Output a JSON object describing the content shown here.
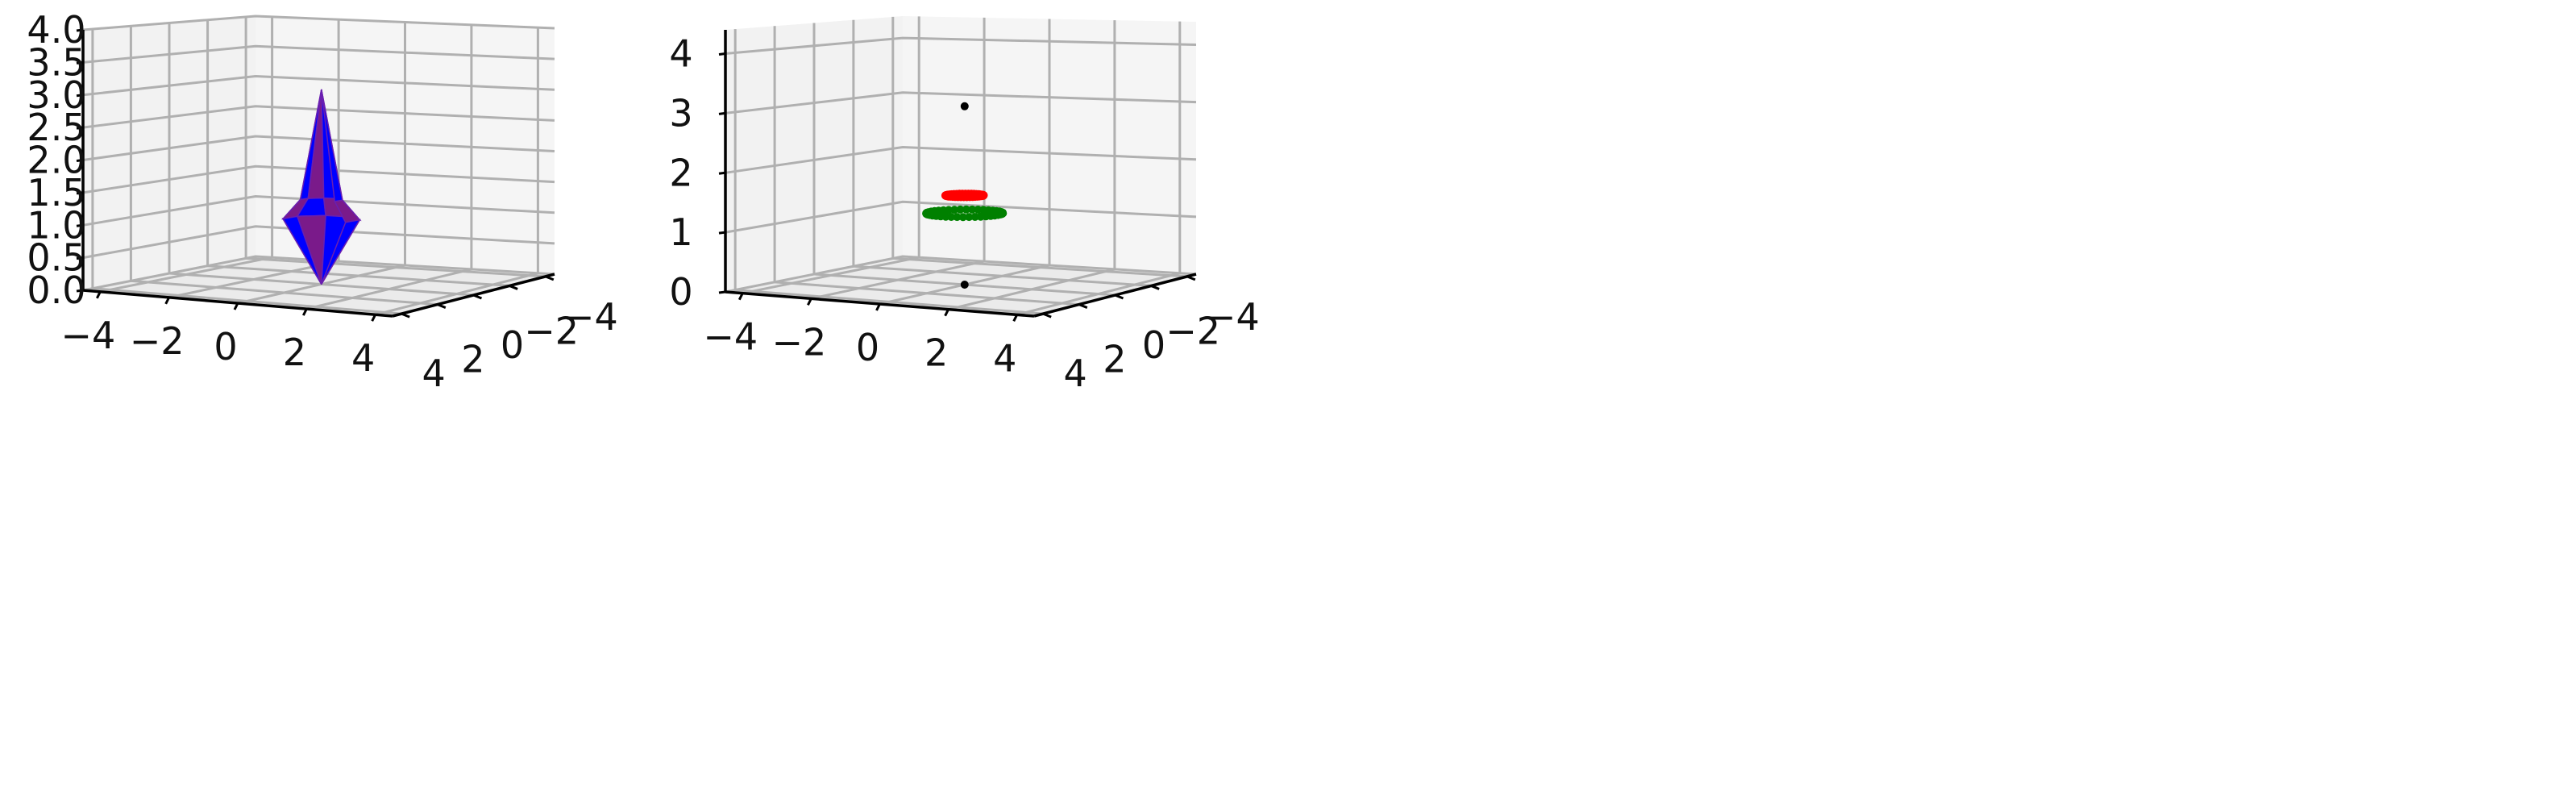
{
  "chart_data": [
    {
      "type": "surface3d",
      "title": "",
      "zticks": [
        "0.0",
        "0.5",
        "1.0",
        "1.5",
        "2.0",
        "2.5",
        "3.0",
        "3.5",
        "4.0"
      ],
      "xticks": [
        "−4",
        "−2",
        "0",
        "2",
        "4"
      ],
      "yticks": [
        "4",
        "2",
        "0",
        "−2",
        "−4"
      ],
      "xlim": [
        -4,
        4
      ],
      "ylim": [
        -4,
        4
      ],
      "zlim": [
        0,
        4
      ],
      "grid": true,
      "shape": {
        "top_z": 3.0,
        "equator_z": 1.0,
        "bottom_z": 0.0,
        "radius": 1.0,
        "colors": [
          "#0000ff",
          "#7a1a8a"
        ]
      }
    },
    {
      "type": "scatter3d",
      "title": "",
      "zticks": [
        "0",
        "1",
        "2",
        "3",
        "4"
      ],
      "xticks": [
        "−4",
        "−2",
        "0",
        "2",
        "4"
      ],
      "yticks": [
        "4",
        "2",
        "0",
        "−2",
        "−4"
      ],
      "xlim": [
        -4,
        4
      ],
      "ylim": [
        -4,
        4
      ],
      "zlim": [
        0,
        4
      ],
      "grid": true,
      "series": [
        {
          "color": "#000000",
          "points": [
            [
              0,
              0,
              3.0
            ],
            [
              0,
              0,
              0.0
            ]
          ]
        },
        {
          "color": "#ff0000",
          "ring": {
            "z": 1.5,
            "radius": 0.5,
            "count": 40
          }
        },
        {
          "color": "#008000",
          "ring": {
            "z": 1.2,
            "radius": 1.0,
            "count": 40
          }
        }
      ]
    }
  ]
}
